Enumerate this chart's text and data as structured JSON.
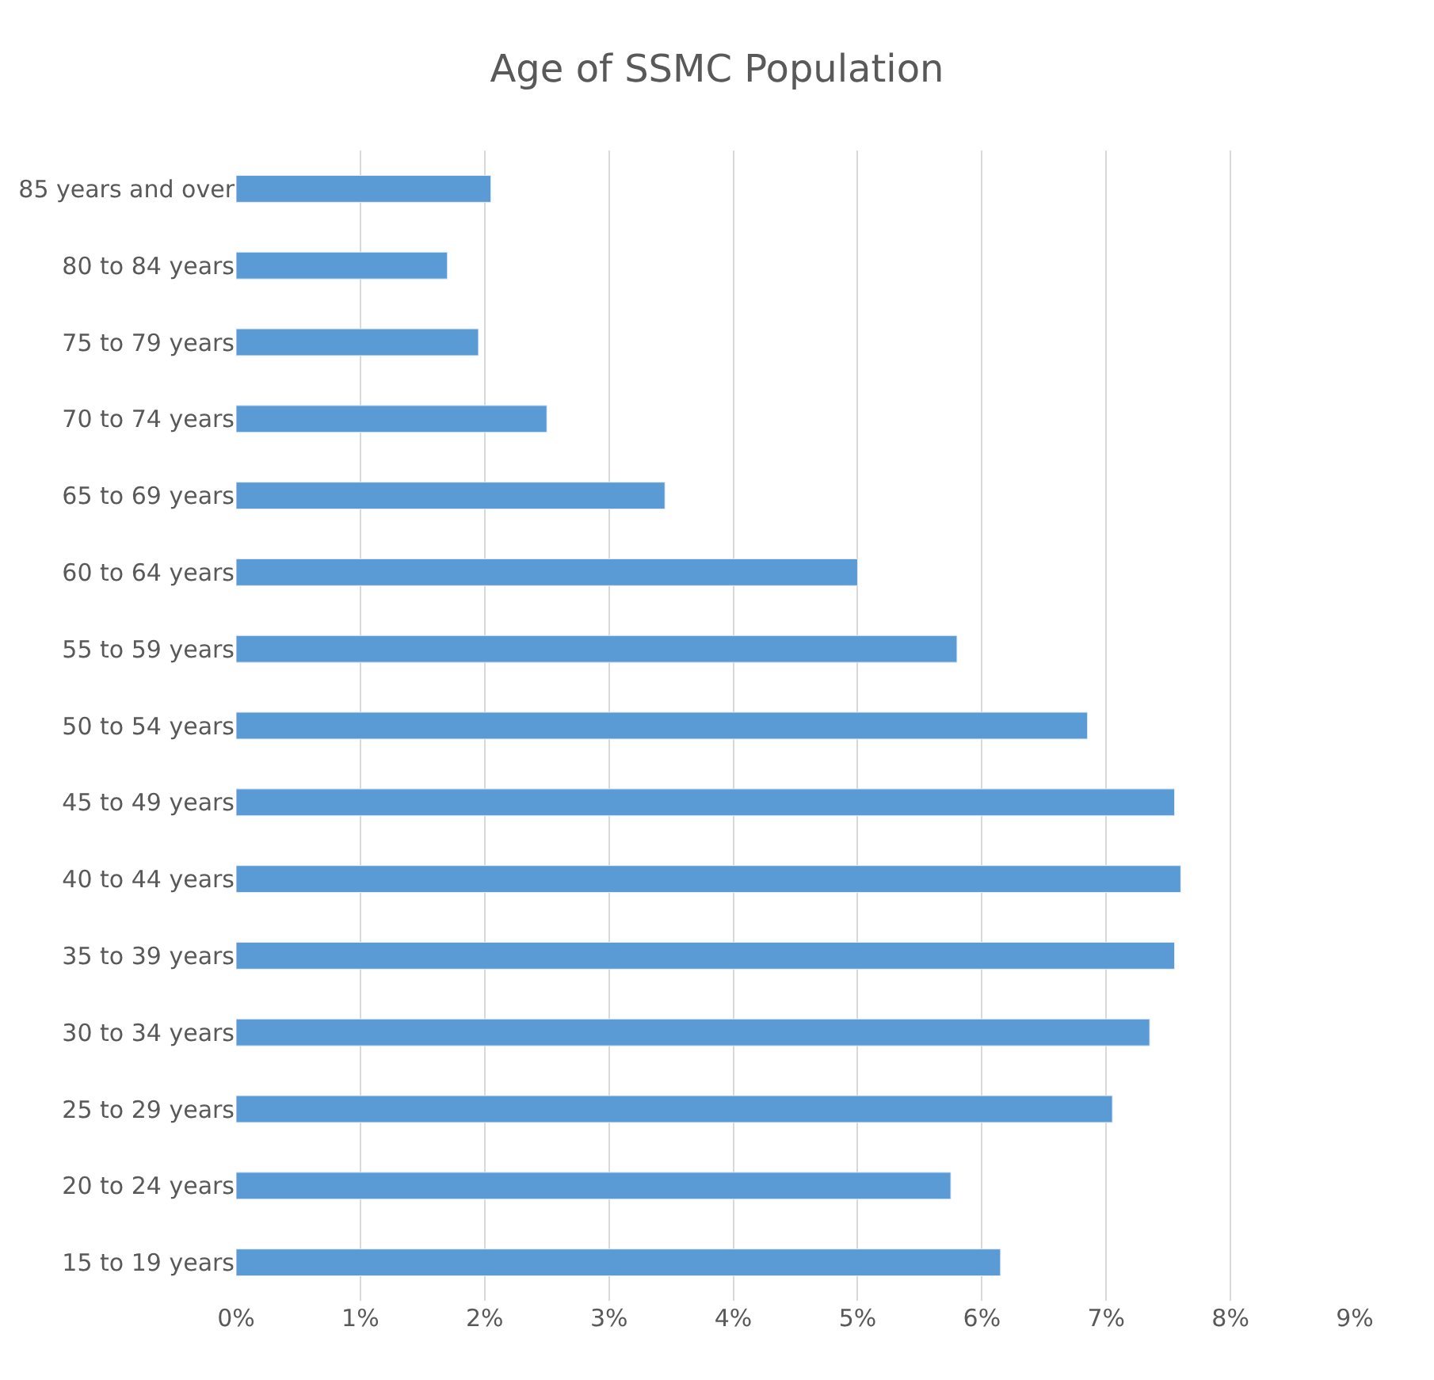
{
  "chart_data": {
    "type": "bar",
    "orientation": "horizontal",
    "title": "Age of SSMC Population",
    "categories": [
      "85 years and over",
      "80 to 84 years",
      "75 to 79 years",
      "70 to 74 years",
      "65 to 69 years",
      "60 to 64 years",
      "55 to 59 years",
      "50 to 54 years",
      "45 to 49 years",
      "40 to 44 years",
      "35 to 39 years",
      "30 to 34 years",
      "25 to 29 years",
      "20 to 24 years",
      "15 to 19 years"
    ],
    "values": [
      2.05,
      1.7,
      1.95,
      2.5,
      3.45,
      5.0,
      5.8,
      6.85,
      7.55,
      7.6,
      7.55,
      7.35,
      7.05,
      5.75,
      6.15
    ],
    "color": "#5b9bd5",
    "xlim": [
      0,
      9
    ],
    "xticks": [
      {
        "value": 0,
        "label": "0%"
      },
      {
        "value": 1,
        "label": "1%"
      },
      {
        "value": 2,
        "label": "2%"
      },
      {
        "value": 3,
        "label": "3%"
      },
      {
        "value": 4,
        "label": "4%"
      },
      {
        "value": 5,
        "label": "5%"
      },
      {
        "value": 6,
        "label": "6%"
      },
      {
        "value": 7,
        "label": "7%"
      },
      {
        "value": 8,
        "label": "8%"
      },
      {
        "value": 9,
        "label": "9%"
      }
    ],
    "grid": "x"
  }
}
